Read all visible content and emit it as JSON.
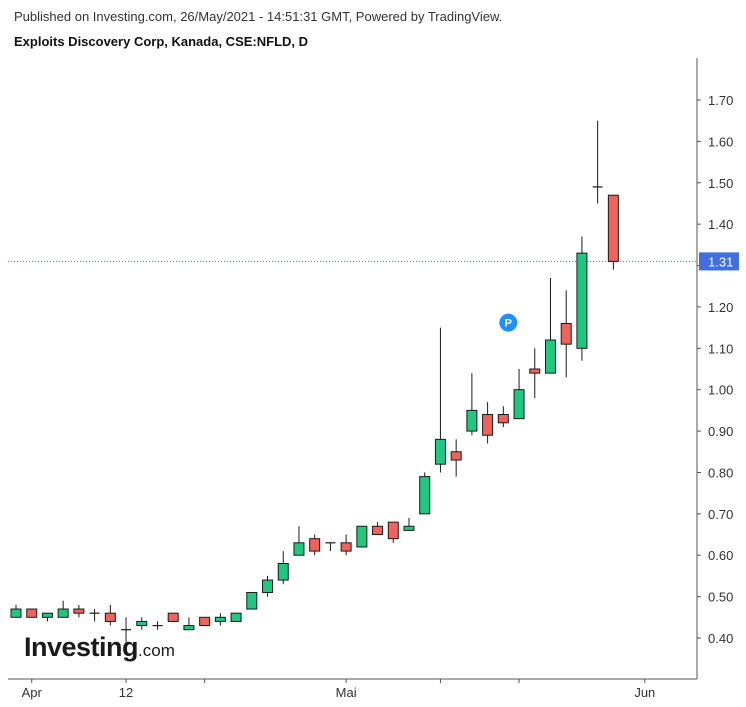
{
  "header": {
    "published": "Published on Investing.com, 26/May/2021 - 14:51:31 GMT, Powered by TradingView.",
    "title": "Exploits Discovery Corp, Kanada, CSE:NFLD, D"
  },
  "logo": {
    "name": "Investing",
    "suffix": ".com"
  },
  "colors": {
    "up_fill": "#1ec97f",
    "down_fill": "#f0625a",
    "wick": "#1a1a1a",
    "price_line": "#4a6ee0",
    "price_label_bg": "#3f6fe0",
    "axis": "#555555",
    "marker": "#1e90ff"
  },
  "chart_data": {
    "type": "candlestick",
    "title": "Exploits Discovery Corp, Kanada, CSE:NFLD, D",
    "y_axis": {
      "position": "right",
      "ticks": [
        "1.70",
        "1.60",
        "1.50",
        "1.40",
        "1.30",
        "1.20",
        "1.10",
        "1.00",
        "0.90",
        "0.80",
        "0.70",
        "0.60",
        "0.50",
        "0.40"
      ],
      "range": [
        0.335,
        1.835
      ]
    },
    "x_axis": {
      "ticks": [
        {
          "label": "Apr",
          "index": 1
        },
        {
          "label": "12",
          "index": 7
        },
        {
          "label": "",
          "index": 12
        },
        {
          "label": "Mai",
          "index": 21
        },
        {
          "label": "",
          "index": 27
        },
        {
          "label": "",
          "index": 32
        },
        {
          "label": "Jun",
          "index": 40
        }
      ]
    },
    "last_price": {
      "label": "1.31",
      "value": 1.31
    },
    "marker": {
      "label": "P",
      "index": 31,
      "value": 1.145
    },
    "candles": [
      {
        "open": 0.45,
        "high": 0.48,
        "low": 0.45,
        "close": 0.47
      },
      {
        "open": 0.47,
        "high": 0.47,
        "low": 0.45,
        "close": 0.45
      },
      {
        "open": 0.45,
        "high": 0.46,
        "low": 0.44,
        "close": 0.46
      },
      {
        "open": 0.45,
        "high": 0.49,
        "low": 0.45,
        "close": 0.47
      },
      {
        "open": 0.47,
        "high": 0.48,
        "low": 0.45,
        "close": 0.46
      },
      {
        "open": 0.46,
        "high": 0.47,
        "low": 0.44,
        "close": 0.46
      },
      {
        "open": 0.46,
        "high": 0.48,
        "low": 0.43,
        "close": 0.44
      },
      {
        "open": 0.42,
        "high": 0.45,
        "low": 0.39,
        "close": 0.42
      },
      {
        "open": 0.43,
        "high": 0.45,
        "low": 0.42,
        "close": 0.44
      },
      {
        "open": 0.43,
        "high": 0.44,
        "low": 0.42,
        "close": 0.43
      },
      {
        "open": 0.46,
        "high": 0.46,
        "low": 0.44,
        "close": 0.44
      },
      {
        "open": 0.42,
        "high": 0.45,
        "low": 0.42,
        "close": 0.43
      },
      {
        "open": 0.45,
        "high": 0.45,
        "low": 0.43,
        "close": 0.43
      },
      {
        "open": 0.44,
        "high": 0.46,
        "low": 0.43,
        "close": 0.45
      },
      {
        "open": 0.44,
        "high": 0.46,
        "low": 0.44,
        "close": 0.46
      },
      {
        "open": 0.47,
        "high": 0.51,
        "low": 0.47,
        "close": 0.51
      },
      {
        "open": 0.51,
        "high": 0.55,
        "low": 0.5,
        "close": 0.54
      },
      {
        "open": 0.54,
        "high": 0.61,
        "low": 0.53,
        "close": 0.58
      },
      {
        "open": 0.6,
        "high": 0.67,
        "low": 0.6,
        "close": 0.63
      },
      {
        "open": 0.64,
        "high": 0.65,
        "low": 0.6,
        "close": 0.61
      },
      {
        "open": 0.63,
        "high": 0.63,
        "low": 0.61,
        "close": 0.63
      },
      {
        "open": 0.63,
        "high": 0.65,
        "low": 0.6,
        "close": 0.61
      },
      {
        "open": 0.62,
        "high": 0.67,
        "low": 0.62,
        "close": 0.67
      },
      {
        "open": 0.67,
        "high": 0.68,
        "low": 0.65,
        "close": 0.65
      },
      {
        "open": 0.68,
        "high": 0.68,
        "low": 0.63,
        "close": 0.64
      },
      {
        "open": 0.66,
        "high": 0.69,
        "low": 0.66,
        "close": 0.67
      },
      {
        "open": 0.7,
        "high": 0.8,
        "low": 0.7,
        "close": 0.79
      },
      {
        "open": 0.82,
        "high": 1.15,
        "low": 0.8,
        "close": 0.88
      },
      {
        "open": 0.85,
        "high": 0.88,
        "low": 0.79,
        "close": 0.83
      },
      {
        "open": 0.9,
        "high": 1.04,
        "low": 0.89,
        "close": 0.95
      },
      {
        "open": 0.94,
        "high": 0.97,
        "low": 0.87,
        "close": 0.89
      },
      {
        "open": 0.94,
        "high": 0.96,
        "low": 0.91,
        "close": 0.92
      },
      {
        "open": 0.93,
        "high": 1.05,
        "low": 0.93,
        "close": 1.0
      },
      {
        "open": 1.05,
        "high": 1.1,
        "low": 0.98,
        "close": 1.04
      },
      {
        "open": 1.04,
        "high": 1.27,
        "low": 1.04,
        "close": 1.12
      },
      {
        "open": 1.16,
        "high": 1.24,
        "low": 1.03,
        "close": 1.11
      },
      {
        "open": 1.1,
        "high": 1.37,
        "low": 1.07,
        "close": 1.33
      },
      {
        "open": 1.49,
        "high": 1.65,
        "low": 1.45,
        "close": 1.49
      },
      {
        "open": 1.47,
        "high": 1.47,
        "low": 1.29,
        "close": 1.31
      }
    ]
  }
}
